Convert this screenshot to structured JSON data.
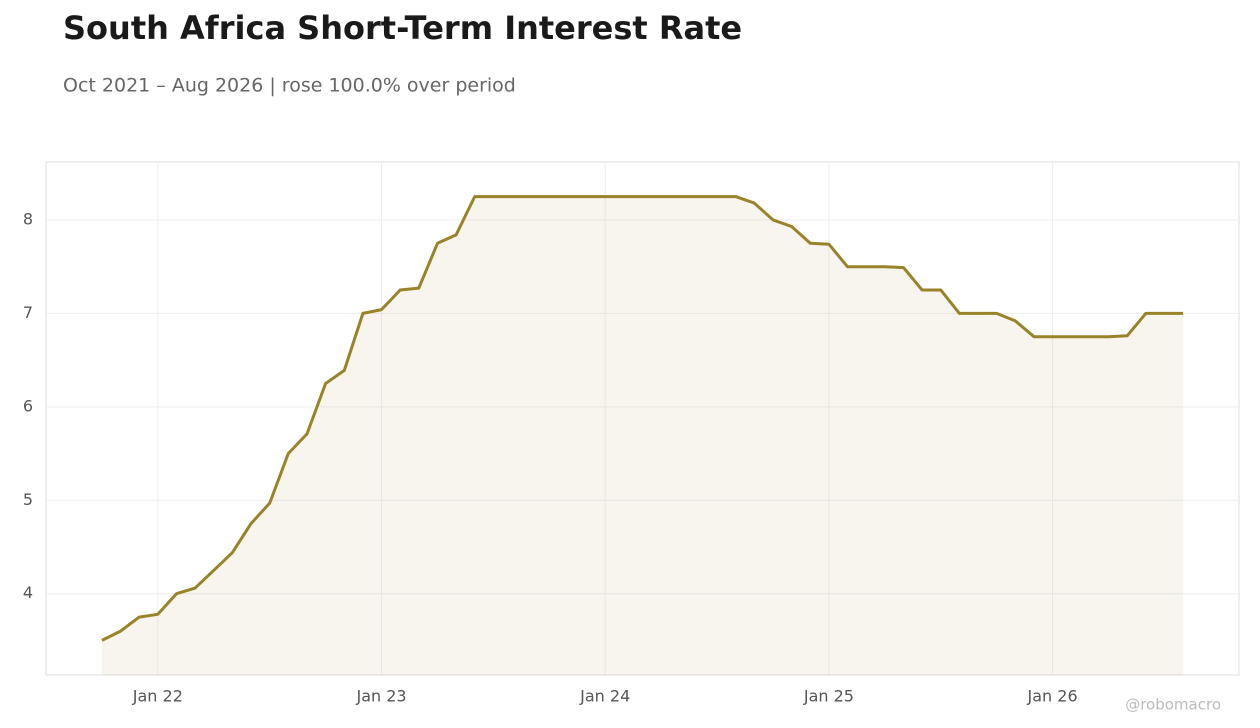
{
  "chart_data": {
    "type": "line",
    "title": "South Africa Short-Term Interest Rate",
    "subtitle": "Oct 2021 – Aug 2026 | rose 100.0% over period",
    "watermark": "@robomacro",
    "color": "#9a8228",
    "grid": true,
    "x": [
      "2021-10",
      "2021-11",
      "2021-12",
      "2022-01",
      "2022-02",
      "2022-03",
      "2022-04",
      "2022-05",
      "2022-06",
      "2022-07",
      "2022-08",
      "2022-09",
      "2022-10",
      "2022-11",
      "2022-12",
      "2023-01",
      "2023-02",
      "2023-03",
      "2023-04",
      "2023-05",
      "2023-06",
      "2023-07",
      "2023-08",
      "2023-09",
      "2023-10",
      "2023-11",
      "2023-12",
      "2024-01",
      "2024-02",
      "2024-03",
      "2024-04",
      "2024-05",
      "2024-06",
      "2024-07",
      "2024-08",
      "2024-09",
      "2024-10",
      "2024-11",
      "2024-12",
      "2025-01",
      "2025-02",
      "2025-03",
      "2025-04",
      "2025-05",
      "2025-06",
      "2025-07",
      "2025-08",
      "2025-09",
      "2025-10",
      "2025-11",
      "2025-12",
      "2026-01",
      "2026-02",
      "2026-03",
      "2026-04",
      "2026-05",
      "2026-06",
      "2026-07",
      "2026-08"
    ],
    "values": [
      3.5,
      3.6,
      3.75,
      3.78,
      4.0,
      4.06,
      4.25,
      4.44,
      4.75,
      4.97,
      5.5,
      5.71,
      6.25,
      6.39,
      7.0,
      7.04,
      7.25,
      7.27,
      7.75,
      7.84,
      8.25,
      8.25,
      8.25,
      8.25,
      8.25,
      8.25,
      8.25,
      8.25,
      8.25,
      8.25,
      8.25,
      8.25,
      8.25,
      8.25,
      8.25,
      8.18,
      8.0,
      7.93,
      7.75,
      7.74,
      7.5,
      7.5,
      7.5,
      7.49,
      7.25,
      7.25,
      7.0,
      7.0,
      7.0,
      6.92,
      6.75,
      6.75,
      6.75,
      6.75,
      6.75,
      6.76,
      7.0,
      7.0,
      7.0
    ],
    "xlim": [
      "2021-07",
      "2026-11"
    ],
    "xticks": [
      {
        "value": "2022-01",
        "label": "Jan 22"
      },
      {
        "value": "2023-01",
        "label": "Jan 23"
      },
      {
        "value": "2024-01",
        "label": "Jan 24"
      },
      {
        "value": "2025-01",
        "label": "Jan 25"
      },
      {
        "value": "2026-01",
        "label": "Jan 26"
      }
    ],
    "ylim": [
      3.13,
      8.62
    ],
    "yticks": [
      4,
      5,
      6,
      7,
      8
    ]
  }
}
